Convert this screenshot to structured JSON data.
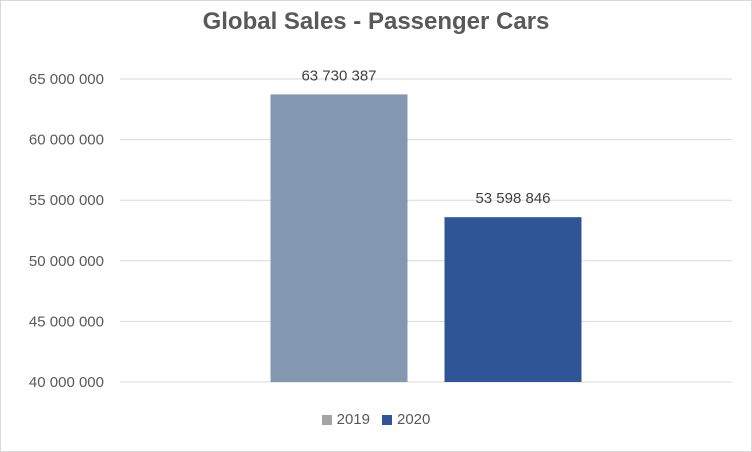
{
  "chart_data": {
    "type": "bar",
    "title": "Global Sales - Passenger Cars",
    "xlabel": "",
    "ylabel": "",
    "ylim": [
      40000000,
      65000000
    ],
    "yticks": [
      40000000,
      45000000,
      50000000,
      55000000,
      60000000,
      65000000
    ],
    "grid": true,
    "legend_position": "bottom",
    "series": [
      {
        "name": "2019",
        "value": 63730387,
        "label": "63 730 387",
        "color": "#8497b0"
      },
      {
        "name": "2020",
        "value": 53598846,
        "label": "53 598 846",
        "color": "#2f5597"
      }
    ],
    "legend": [
      {
        "name": "2019",
        "color": "#a5a5a5"
      },
      {
        "name": "2020",
        "color": "#2f5597"
      }
    ]
  }
}
